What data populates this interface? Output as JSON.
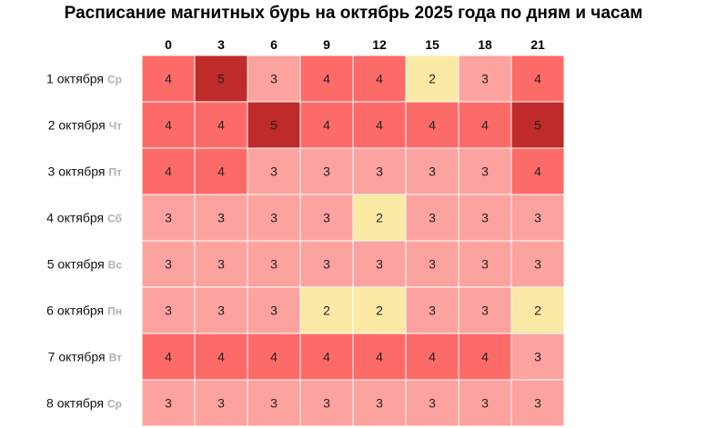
{
  "chart_data": {
    "type": "heatmap",
    "title": "Расписание магнитных бурь на октябрь 2025 года по дням и часам",
    "columns": [
      "0",
      "3",
      "6",
      "9",
      "12",
      "15",
      "18",
      "21"
    ],
    "rows": [
      {
        "date": "1 октября",
        "dow": "Ср",
        "values": [
          4,
          5,
          3,
          4,
          4,
          2,
          3,
          4
        ]
      },
      {
        "date": "2 октября",
        "dow": "Чт",
        "values": [
          4,
          4,
          5,
          4,
          4,
          4,
          4,
          5
        ]
      },
      {
        "date": "3 октября",
        "dow": "Пт",
        "values": [
          4,
          4,
          3,
          3,
          3,
          3,
          3,
          4
        ]
      },
      {
        "date": "4 октября",
        "dow": "Сб",
        "values": [
          3,
          3,
          3,
          3,
          2,
          3,
          3,
          3
        ]
      },
      {
        "date": "5 октября",
        "dow": "Вс",
        "values": [
          3,
          3,
          3,
          3,
          3,
          3,
          3,
          3
        ]
      },
      {
        "date": "6 октября",
        "dow": "Пн",
        "values": [
          3,
          3,
          3,
          2,
          2,
          3,
          3,
          2
        ]
      },
      {
        "date": "7 октября",
        "dow": "Вт",
        "values": [
          4,
          4,
          4,
          4,
          4,
          4,
          4,
          3
        ]
      },
      {
        "date": "8 октября",
        "dow": "Ср",
        "values": [
          3,
          3,
          3,
          3,
          3,
          3,
          3,
          3
        ]
      }
    ],
    "color_scale": {
      "2": "#fbe9a6",
      "3": "#fda39f",
      "4": "#fd6b68",
      "5": "#bf2a2a"
    }
  }
}
